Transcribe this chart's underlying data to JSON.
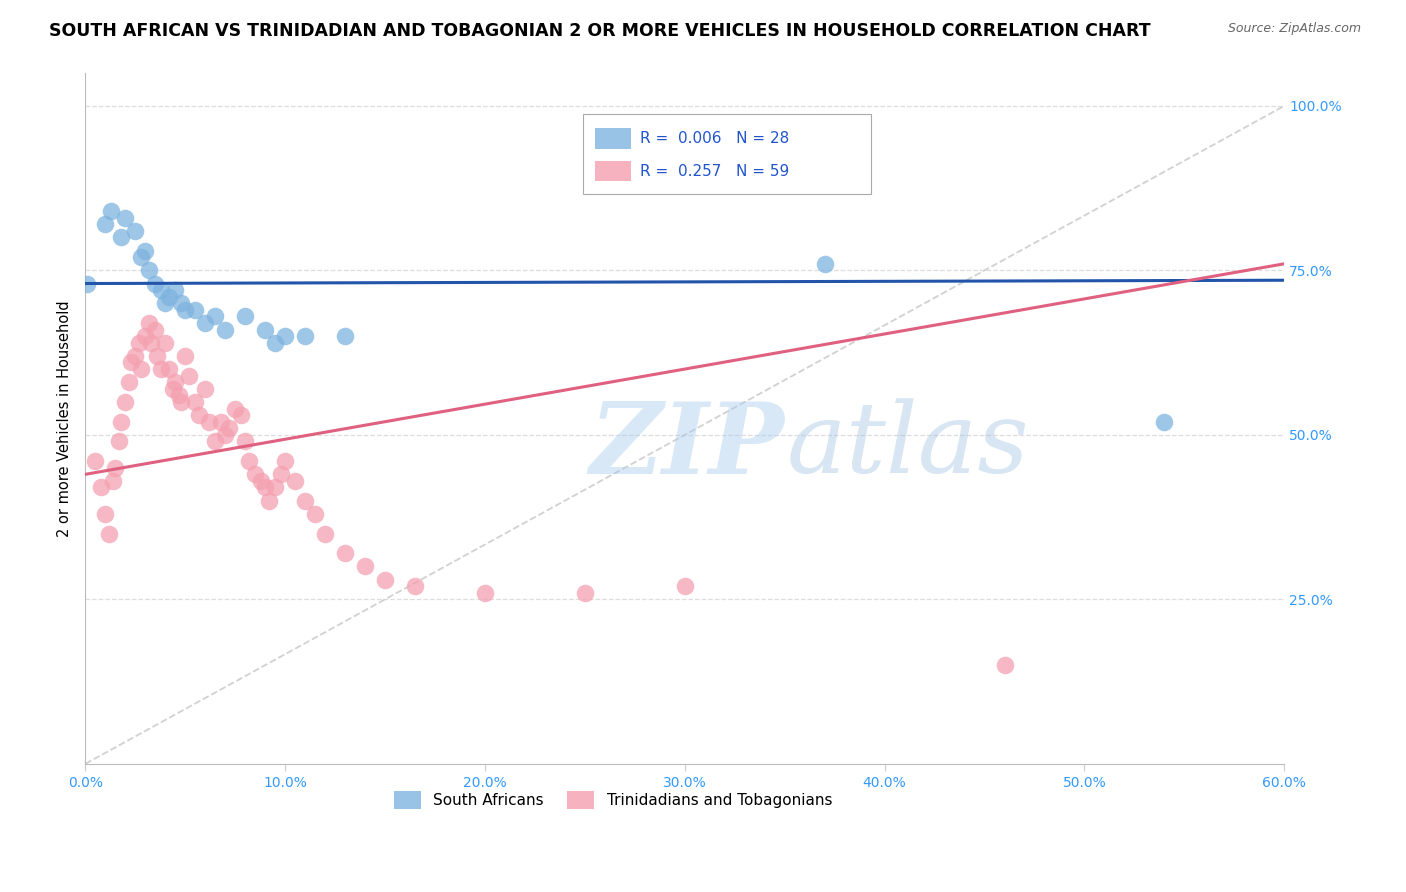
{
  "title": "SOUTH AFRICAN VS TRINIDADIAN AND TOBAGONIAN 2 OR MORE VEHICLES IN HOUSEHOLD CORRELATION CHART",
  "source": "Source: ZipAtlas.com",
  "ylabel": "2 or more Vehicles in Household",
  "ytick_labels": [
    "100.0%",
    "75.0%",
    "50.0%",
    "25.0%"
  ],
  "ytick_values": [
    1.0,
    0.75,
    0.5,
    0.25
  ],
  "legend_r1_val": "0.006",
  "legend_n1_val": "28",
  "legend_r2_val": "0.257",
  "legend_n2_val": "59",
  "legend_label1": "South Africans",
  "legend_label2": "Trinidadians and Tobagonians",
  "blue_color": "#7EB3E0",
  "pink_color": "#F4A0B0",
  "trend_blue_color": "#2255AA",
  "trend_pink_color": "#E06080",
  "trend_dashed_color": "#CCCCCC",
  "xlim": [
    0.0,
    0.6
  ],
  "ylim": [
    0.0,
    1.05
  ],
  "xtick_vals": [
    0.0,
    0.1,
    0.2,
    0.3,
    0.4,
    0.5,
    0.6
  ],
  "xtick_labels": [
    "0.0%",
    "10.0%",
    "20.0%",
    "30.0%",
    "40.0%",
    "50.0%",
    "60.0%"
  ],
  "blue_scatter_x": [
    0.001,
    0.01,
    0.013,
    0.018,
    0.02,
    0.025,
    0.028,
    0.03,
    0.032,
    0.035,
    0.038,
    0.04,
    0.042,
    0.045,
    0.048,
    0.05,
    0.055,
    0.06,
    0.065,
    0.07,
    0.08,
    0.09,
    0.095,
    0.1,
    0.11,
    0.13,
    0.37,
    0.54
  ],
  "blue_scatter_y": [
    0.73,
    0.82,
    0.84,
    0.8,
    0.83,
    0.81,
    0.77,
    0.78,
    0.75,
    0.73,
    0.72,
    0.7,
    0.71,
    0.72,
    0.7,
    0.69,
    0.69,
    0.67,
    0.68,
    0.66,
    0.68,
    0.66,
    0.64,
    0.65,
    0.65,
    0.65,
    0.76,
    0.52
  ],
  "pink_scatter_x": [
    0.005,
    0.008,
    0.01,
    0.012,
    0.014,
    0.015,
    0.017,
    0.018,
    0.02,
    0.022,
    0.023,
    0.025,
    0.027,
    0.028,
    0.03,
    0.032,
    0.033,
    0.035,
    0.036,
    0.038,
    0.04,
    0.042,
    0.044,
    0.045,
    0.047,
    0.048,
    0.05,
    0.052,
    0.055,
    0.057,
    0.06,
    0.062,
    0.065,
    0.068,
    0.07,
    0.072,
    0.075,
    0.078,
    0.08,
    0.082,
    0.085,
    0.088,
    0.09,
    0.092,
    0.095,
    0.098,
    0.1,
    0.105,
    0.11,
    0.115,
    0.12,
    0.13,
    0.14,
    0.15,
    0.165,
    0.2,
    0.25,
    0.3,
    0.46
  ],
  "pink_scatter_y": [
    0.46,
    0.42,
    0.38,
    0.35,
    0.43,
    0.45,
    0.49,
    0.52,
    0.55,
    0.58,
    0.61,
    0.62,
    0.64,
    0.6,
    0.65,
    0.67,
    0.64,
    0.66,
    0.62,
    0.6,
    0.64,
    0.6,
    0.57,
    0.58,
    0.56,
    0.55,
    0.62,
    0.59,
    0.55,
    0.53,
    0.57,
    0.52,
    0.49,
    0.52,
    0.5,
    0.51,
    0.54,
    0.53,
    0.49,
    0.46,
    0.44,
    0.43,
    0.42,
    0.4,
    0.42,
    0.44,
    0.46,
    0.43,
    0.4,
    0.38,
    0.35,
    0.32,
    0.3,
    0.28,
    0.27,
    0.26,
    0.26,
    0.27,
    0.15
  ],
  "blue_trend_x": [
    0.0,
    0.6
  ],
  "blue_trend_y": [
    0.73,
    0.735
  ],
  "pink_trend_x": [
    0.0,
    0.6
  ],
  "pink_trend_y": [
    0.44,
    0.76
  ]
}
